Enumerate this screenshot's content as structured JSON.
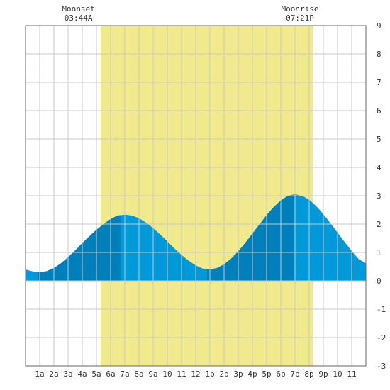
{
  "chart_data": {
    "type": "area",
    "title": "",
    "xlabel": "",
    "ylabel": "",
    "xlim": [
      0,
      24
    ],
    "ylim": [
      -3,
      9
    ],
    "y_ticks": [
      -3,
      -2,
      -1,
      0,
      1,
      2,
      3,
      4,
      5,
      6,
      7,
      8,
      9
    ],
    "x_tick_labels": [
      "1a",
      "2a",
      "3a",
      "4a",
      "5a",
      "6a",
      "7a",
      "8a",
      "9a",
      "10",
      "11",
      "12",
      "1p",
      "2p",
      "3p",
      "4p",
      "5p",
      "6p",
      "7p",
      "8p",
      "9p",
      "10",
      "11"
    ],
    "grid": true,
    "daylight_band": {
      "start": 5.3,
      "end": 20.3,
      "color": "#f0ea8c"
    },
    "moon_events": [
      {
        "label": "Moonset",
        "time": "03:44A",
        "x": 3.73
      },
      {
        "label": "Moonrise",
        "time": "07:21P",
        "x": 19.35
      }
    ],
    "extremes": [
      {
        "type": "low",
        "x": 0.9,
        "y": 0.3
      },
      {
        "type": "high",
        "x": 6.7,
        "y": 2.35
      },
      {
        "type": "low",
        "x": 12.8,
        "y": 0.4
      },
      {
        "type": "high",
        "x": 18.9,
        "y": 3.05
      },
      {
        "type": "low",
        "x": 25.0,
        "y": 0.3
      }
    ],
    "series": [
      {
        "x": [
          0,
          0.5,
          1,
          1.5,
          2,
          2.5,
          3,
          3.5,
          4,
          4.5,
          5,
          5.5,
          6,
          6.5,
          7,
          7.5,
          8,
          8.5,
          9,
          9.5,
          10,
          10.5,
          11,
          11.5,
          12,
          12.5,
          13,
          13.5,
          14,
          14.5,
          15,
          15.5,
          16,
          16.5,
          17,
          17.5,
          18,
          18.5,
          19,
          19.5,
          20,
          20.5,
          21,
          21.5,
          22,
          22.5,
          23,
          23.5,
          24
        ],
        "y": [
          0.4,
          0.33,
          0.3,
          0.34,
          0.45,
          0.62,
          0.83,
          1.07,
          1.33,
          1.57,
          1.8,
          2.0,
          2.18,
          2.3,
          2.33,
          2.3,
          2.21,
          2.05,
          1.86,
          1.63,
          1.39,
          1.14,
          0.91,
          0.71,
          0.54,
          0.43,
          0.4,
          0.45,
          0.58,
          0.78,
          1.04,
          1.34,
          1.67,
          1.99,
          2.32,
          2.6,
          2.83,
          3.0,
          3.05,
          3.0,
          2.86,
          2.63,
          2.35,
          2.03,
          1.7,
          1.37,
          1.05,
          0.76,
          0.62
        ]
      }
    ],
    "colors": {
      "water_light": "#0099d9",
      "water_dark": "#0080bb",
      "daylight": "#f0ea8c",
      "grid": "#c8c8c8",
      "frame": "#666666",
      "text": "#333333"
    }
  }
}
